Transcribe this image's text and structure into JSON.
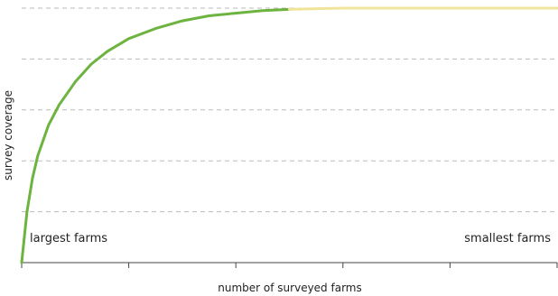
{
  "chart_data": {
    "type": "line",
    "title": "",
    "xlabel": "number of surveyed farms",
    "ylabel": "survey coverage",
    "xlim": [
      0,
      100
    ],
    "ylim": [
      0,
      100
    ],
    "grid": "horizontal dashed",
    "tick_labels_shown": false,
    "colors": {
      "surveyed": "#6db33f",
      "remaining": "#f0e49a",
      "grid": "#bbbbbb",
      "axis": "#444444"
    },
    "series": [
      {
        "segment": "surveyed",
        "x": [
          0,
          1,
          2,
          3,
          5,
          7,
          10,
          13,
          16,
          20,
          25,
          30,
          35,
          40,
          45,
          50
        ],
        "y": [
          0,
          20,
          33,
          42,
          54,
          62,
          71,
          78,
          83,
          88,
          92,
          95,
          97,
          98,
          99,
          99.5
        ]
      },
      {
        "segment": "remaining",
        "x": [
          50,
          55,
          60,
          70,
          80,
          90,
          100
        ],
        "y": [
          99.5,
          99.8,
          100,
          100,
          100,
          100,
          100
        ]
      }
    ],
    "annotations": [
      "largest farms",
      "smallest farms"
    ]
  }
}
